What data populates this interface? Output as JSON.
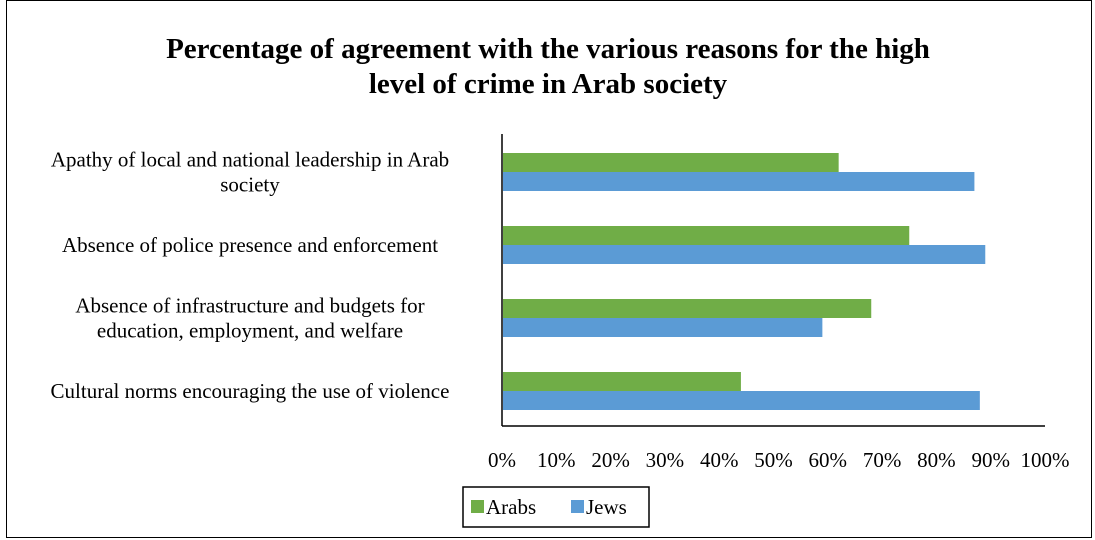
{
  "chart_data": {
    "type": "bar",
    "orientation": "horizontal",
    "title": "Percentage of agreement with the various reasons for the high level of crime in Arab society",
    "title_lines": [
      "Percentage of agreement with the various reasons for the high",
      "level of crime in Arab society"
    ],
    "categories": [
      [
        "Apathy of local and national leadership in Arab",
        "society"
      ],
      [
        "Absence of police presence and enforcement"
      ],
      [
        "Absence of infrastructure and budgets for",
        "education, employment, and welfare"
      ],
      [
        "Cultural norms encouraging the use of violence"
      ]
    ],
    "series": [
      {
        "name": "Arabs",
        "color": "#70AD47",
        "values": [
          62,
          75,
          68,
          44
        ]
      },
      {
        "name": "Jews",
        "color": "#5B9BD5",
        "values": [
          87,
          89,
          59,
          88
        ]
      }
    ],
    "xlim": [
      0,
      100
    ],
    "xticks": [
      "0%",
      "10%",
      "20%",
      "30%",
      "40%",
      "50%",
      "60%",
      "70%",
      "80%",
      "90%",
      "100%"
    ],
    "grid": false,
    "legend_position": "bottom"
  }
}
